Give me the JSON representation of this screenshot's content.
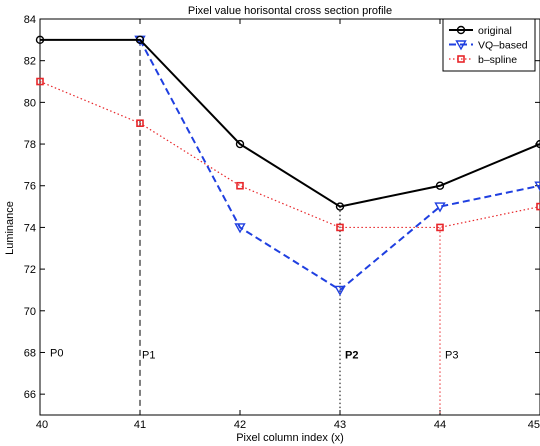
{
  "chart_data": {
    "type": "line",
    "title": "Pixel value horisontal cross section profile",
    "xlabel": "Pixel column index (x)",
    "ylabel": "Luminance",
    "xlim": [
      40,
      45
    ],
    "ylim": [
      65,
      84
    ],
    "xticks": [
      40,
      41,
      42,
      43,
      44,
      45
    ],
    "yticks": [
      66,
      68,
      70,
      72,
      74,
      76,
      78,
      80,
      82,
      84
    ],
    "grid": false,
    "legend_position": "top-right",
    "x": [
      40,
      41,
      42,
      43,
      44,
      45
    ],
    "series": [
      {
        "name": "original",
        "values": [
          83,
          83,
          78,
          75,
          76,
          78
        ],
        "color": "#000000",
        "line": "solid",
        "marker": "circle"
      },
      {
        "name": "VQ–based",
        "values": [
          null,
          83,
          74,
          71,
          75,
          76
        ],
        "color": "#1f3fe0",
        "line": "dashed",
        "marker": "triangle-down"
      },
      {
        "name": "b–spline",
        "values": [
          81,
          79,
          76,
          74,
          74,
          75
        ],
        "color": "#e8262a",
        "line": "dotted",
        "marker": "square"
      }
    ],
    "annotations": [
      {
        "text": "P0",
        "x": 40.1,
        "y": 67.8,
        "bold": false
      },
      {
        "text": "P1",
        "x": 41.02,
        "y": 67.7,
        "bold": false,
        "vline_x": 41,
        "vline_top": 83,
        "vline_style": "dashed",
        "vline_color": "#000000"
      },
      {
        "text": "P2",
        "x": 43.05,
        "y": 67.7,
        "bold": true,
        "vline_x": 43,
        "vline_top": 75,
        "vline_style": "dotted",
        "vline_color": "#000000"
      },
      {
        "text": "P3",
        "x": 44.05,
        "y": 67.7,
        "bold": false,
        "vline_x": 44,
        "vline_top": 74,
        "vline_style": "dotted",
        "vline_color": "#e8262a"
      }
    ]
  }
}
